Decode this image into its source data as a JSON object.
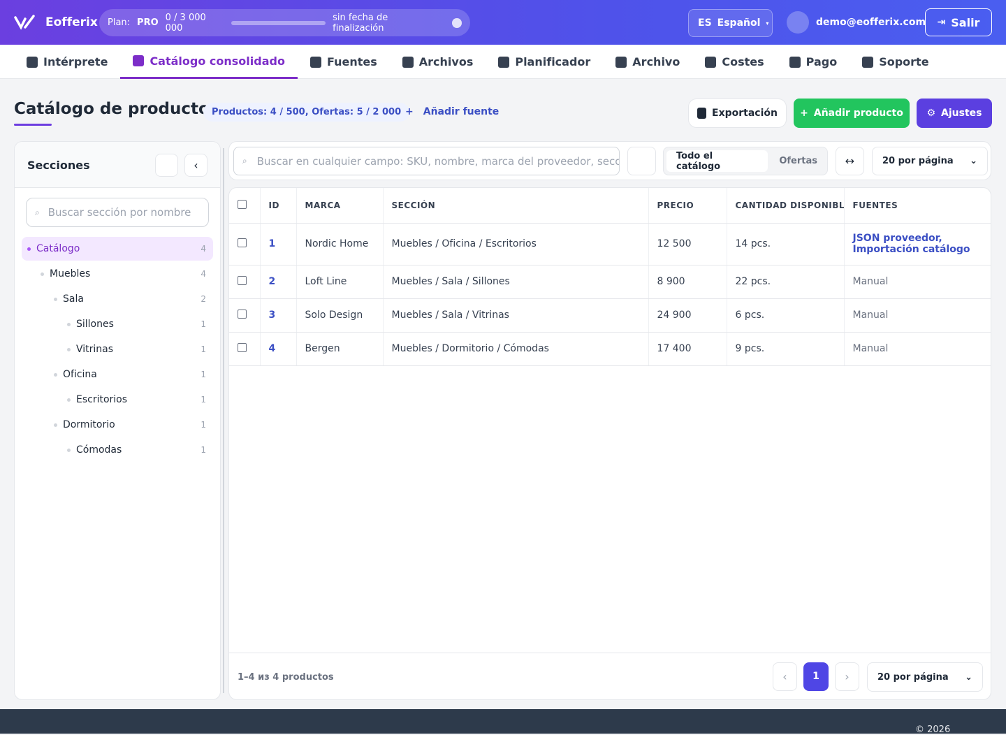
{
  "header": {
    "brand": "Eofferix",
    "plan_label": "Plan:",
    "plan": "PRO",
    "usage": "0 / 3 000 000",
    "expiry": "sin fecha de finalización",
    "lang_code": "ES",
    "lang": "Español",
    "user": "demo@eofferix.com",
    "logout": "Salir"
  },
  "nav": [
    {
      "label": "Intérprete"
    },
    {
      "label": "Catálogo consolidado",
      "active": true
    },
    {
      "label": "Fuentes"
    },
    {
      "label": "Archivos"
    },
    {
      "label": "Planificador"
    },
    {
      "label": "Archivo"
    },
    {
      "label": "Costes"
    },
    {
      "label": "Pago"
    },
    {
      "label": "Soporte"
    }
  ],
  "page": {
    "title": "Catálogo de productos",
    "stats": "Productos: 4 / 500, Ofertas: 5 / 2 000",
    "add_source": "Añadir fuente",
    "export": "Exportación",
    "add_product": "Añadir producto",
    "settings": "Ajustes"
  },
  "sidebar": {
    "title": "Secciones",
    "search_placeholder": "Buscar sección por nombre",
    "tree": [
      {
        "label": "Catálogo",
        "count": 4,
        "active": true,
        "children": [
          {
            "label": "Muebles",
            "count": 4,
            "children": [
              {
                "label": "Sala",
                "count": 2,
                "children": [
                  {
                    "label": "Sillones",
                    "count": 1
                  },
                  {
                    "label": "Vitrinas",
                    "count": 1
                  }
                ]
              },
              {
                "label": "Oficina",
                "count": 1,
                "children": [
                  {
                    "label": "Escritorios",
                    "count": 1
                  }
                ]
              },
              {
                "label": "Dormitorio",
                "count": 1,
                "children": [
                  {
                    "label": "Cómodas",
                    "count": 1
                  }
                ]
              }
            ]
          }
        ]
      }
    ]
  },
  "toolbar": {
    "search_placeholder": "Buscar en cualquier campo: SKU, nombre, marca del proveedor, sección",
    "tabs": [
      "Todo el catálogo",
      "Ofertas"
    ],
    "per_page": "20 por página"
  },
  "table": {
    "columns": [
      "ID",
      "MARCA",
      "SECCIÓN",
      "PRECIO",
      "CANTIDAD DISPONIBLE",
      "FUENTES"
    ],
    "rows": [
      {
        "id": "1",
        "brand": "Nordic Home",
        "section": "Muebles / Oficina / Escritorios",
        "price": "12 500",
        "qty": "14 pcs.",
        "sources": [
          "JSON proveedor,",
          "Importación catálogo"
        ],
        "linked": true
      },
      {
        "id": "2",
        "brand": "Loft Line",
        "section": "Muebles / Sala / Sillones",
        "price": "8 900",
        "qty": "22 pcs.",
        "sources": [
          "Manual"
        ]
      },
      {
        "id": "3",
        "brand": "Solo Design",
        "section": "Muebles / Sala / Vitrinas",
        "price": "24 900",
        "qty": "6 pcs.",
        "sources": [
          "Manual"
        ]
      },
      {
        "id": "4",
        "brand": "Bergen",
        "section": "Muebles / Dormitorio / Cómodas",
        "price": "17 400",
        "qty": "9 pcs.",
        "sources": [
          "Manual"
        ]
      }
    ]
  },
  "footer": {
    "summary": "1–4 из 4 productos",
    "page": "1",
    "per_page": "20 por página",
    "copyright": "© 2026"
  }
}
